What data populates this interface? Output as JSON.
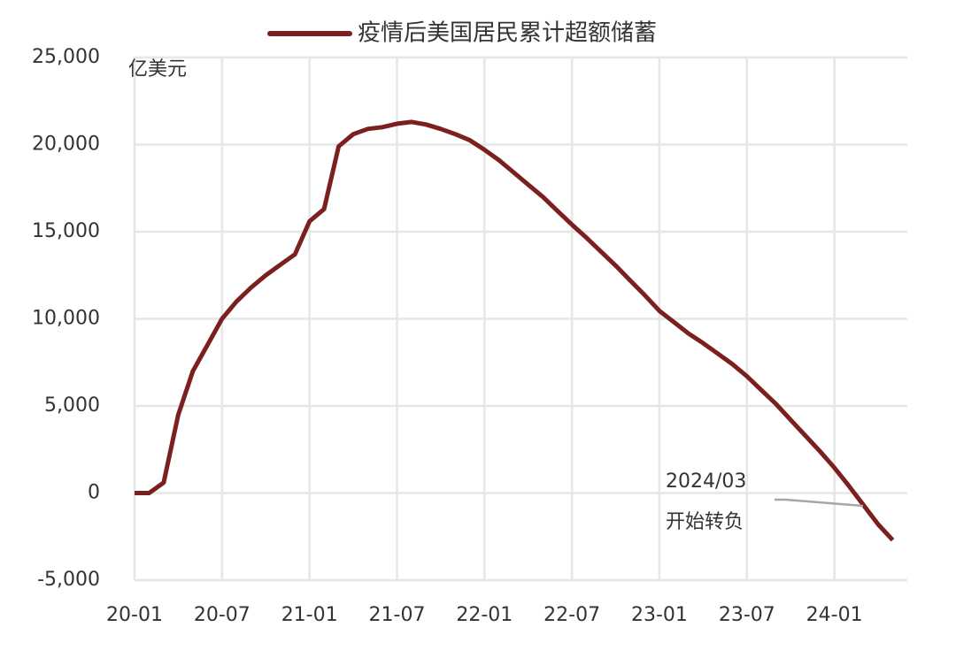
{
  "chart_data": {
    "type": "line",
    "series": [
      {
        "name": "疫情后美国居民累计超额储蓄",
        "color": "#7b1f1f",
        "values": [
          0,
          0,
          600,
          4500,
          7000,
          8500,
          10000,
          11000,
          11800,
          12500,
          13100,
          13700,
          15600,
          16300,
          19900,
          20600,
          20900,
          21000,
          21200,
          21300,
          21150,
          20900,
          20600,
          20250,
          19700,
          19100,
          18400,
          17700,
          17000,
          16200,
          15400,
          14650,
          13850,
          13050,
          12200,
          11350,
          10450,
          9800,
          9150,
          8600,
          8000,
          7400,
          6700,
          5900,
          5100,
          4200,
          3300,
          2400,
          1450,
          400,
          -700,
          -1800,
          -2700
        ]
      }
    ],
    "categories": [
      "20-01",
      null,
      null,
      null,
      null,
      null,
      "20-07",
      null,
      null,
      null,
      null,
      null,
      "21-01",
      null,
      null,
      null,
      null,
      null,
      "21-07",
      null,
      null,
      null,
      null,
      null,
      "22-01",
      null,
      null,
      null,
      null,
      null,
      "22-07",
      null,
      null,
      null,
      null,
      null,
      "23-01",
      null,
      null,
      null,
      null,
      null,
      "23-07",
      null,
      null,
      null,
      null,
      null,
      "24-01",
      null,
      null,
      null,
      null
    ],
    "y_axis_label": "亿美元",
    "ylim": [
      -5000,
      25000
    ],
    "yticks": [
      {
        "value": -5000,
        "label": "-5,000"
      },
      0,
      {
        "value": 5000,
        "label": "5,000"
      },
      {
        "value": 10000,
        "label": "10,000"
      },
      {
        "value": 15000,
        "label": "15,000"
      },
      {
        "value": 20000,
        "label": "20,000"
      },
      {
        "value": 25000,
        "label": "25,000"
      }
    ],
    "annotation": {
      "date": "2024/03",
      "text": "开始转负"
    },
    "grid": true,
    "legend": "top"
  }
}
